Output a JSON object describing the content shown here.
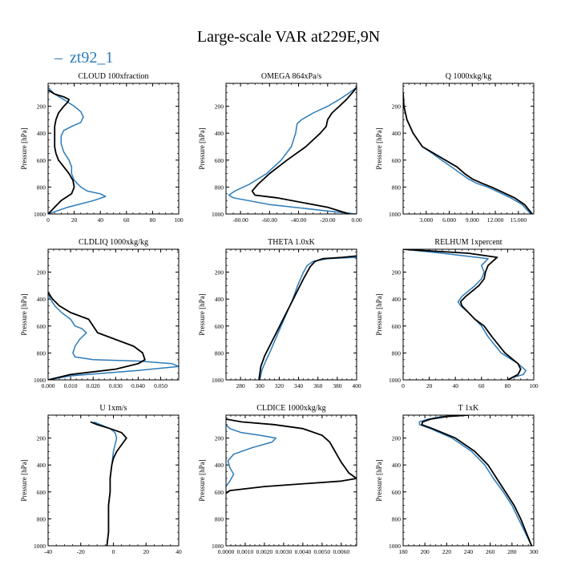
{
  "title": "Large-scale VAR at229E,9N",
  "legend": {
    "label": "zt92_1",
    "color": "#2b7bb9",
    "dash": "–"
  },
  "colors": {
    "model": "#2b7bb9",
    "reference": "#000000"
  },
  "chart_data": [
    {
      "type": "line",
      "title": "CLOUD  100xfraction",
      "ylabel": "Pressure [hPa]",
      "ylim": [
        1000,
        30
      ],
      "yticks": [
        200,
        400,
        600,
        800,
        1000
      ],
      "xlim": [
        0,
        100
      ],
      "xticks": [
        0,
        20,
        40,
        60,
        80,
        100
      ],
      "xticklabels": [
        "0",
        "20",
        "40",
        "60",
        "80",
        "100"
      ],
      "series": [
        {
          "name": "zt92_1",
          "x": [
            0,
            2,
            5,
            12,
            20,
            25,
            27,
            25,
            18,
            12,
            10,
            10,
            12,
            16,
            18,
            18,
            20,
            25,
            30,
            40,
            44,
            35,
            15,
            0
          ],
          "y": [
            60,
            80,
            110,
            150,
            200,
            240,
            280,
            320,
            350,
            380,
            420,
            480,
            540,
            600,
            650,
            700,
            750,
            800,
            830,
            850,
            870,
            900,
            950,
            1000
          ]
        },
        {
          "name": "reference",
          "x": [
            0,
            5,
            12,
            16,
            15,
            12,
            8,
            6,
            5,
            5,
            5,
            5,
            6,
            8,
            12,
            16,
            19,
            20,
            18,
            10,
            0
          ],
          "y": [
            80,
            110,
            130,
            150,
            170,
            200,
            250,
            300,
            350,
            400,
            450,
            500,
            550,
            600,
            650,
            700,
            750,
            800,
            850,
            900,
            1000
          ]
        }
      ]
    },
    {
      "type": "line",
      "title": "OMEGA  864xPa/s",
      "ylabel": "Pressure [hPa]",
      "ylim": [
        1000,
        30
      ],
      "yticks": [
        200,
        400,
        600,
        800,
        1000
      ],
      "xlim": [
        -90,
        0
      ],
      "xticks": [
        -80,
        -60,
        -40,
        -20,
        0
      ],
      "xticklabels": [
        "-80.00",
        "-60.00",
        "-40.00",
        "-20.00",
        "0.00"
      ],
      "series": [
        {
          "name": "zt92_1",
          "x": [
            0,
            -5,
            -12,
            -20,
            -30,
            -38,
            -41,
            -42,
            -45,
            -52,
            -62,
            -74,
            -84,
            -88,
            -85,
            -60,
            -10,
            0
          ],
          "y": [
            60,
            100,
            150,
            200,
            250,
            300,
            330,
            400,
            500,
            600,
            700,
            780,
            830,
            860,
            880,
            930,
            990,
            1000
          ]
        },
        {
          "name": "reference",
          "x": [
            0,
            -3,
            -7,
            -12,
            -17,
            -20,
            -21,
            -25,
            -35,
            -48,
            -60,
            -68,
            -72,
            -70,
            -55,
            -20,
            -5
          ],
          "y": [
            60,
            100,
            150,
            200,
            250,
            300,
            350,
            400,
            500,
            600,
            700,
            780,
            830,
            860,
            880,
            950,
            1000
          ]
        }
      ]
    },
    {
      "type": "line",
      "title": "Q  1000xkg/kg",
      "ylabel": "Pressure [hPa]",
      "ylim": [
        1000,
        30
      ],
      "yticks": [
        200,
        400,
        600,
        800,
        1000
      ],
      "xlim": [
        0,
        17
      ],
      "xticks": [
        3,
        6,
        9,
        12,
        15
      ],
      "xticklabels": [
        "3.000",
        "6.000",
        "9.000",
        "12.000",
        "15.000"
      ],
      "series": [
        {
          "name": "zt92_1",
          "x": [
            0,
            0.1,
            0.5,
            1.3,
            2.5,
            3.8,
            5.0,
            6.3,
            7.5,
            8.5,
            9.5,
            11,
            12.5,
            14,
            15.5,
            16.6
          ],
          "y": [
            100,
            200,
            300,
            400,
            500,
            550,
            600,
            650,
            700,
            740,
            770,
            800,
            840,
            880,
            930,
            1000
          ]
        },
        {
          "name": "reference",
          "x": [
            0,
            0.1,
            0.5,
            1.3,
            2.5,
            4.0,
            5.5,
            7.0,
            8.0,
            9.0,
            10.2,
            11.5,
            13,
            14.5,
            15.8,
            16.8
          ],
          "y": [
            100,
            200,
            300,
            400,
            500,
            550,
            600,
            650,
            700,
            740,
            770,
            800,
            840,
            880,
            930,
            1000
          ]
        }
      ]
    },
    {
      "type": "line",
      "title": "CLDLIQ  1000xkg/kg",
      "ylabel": "Pressure [hPa]",
      "ylim": [
        1000,
        30
      ],
      "yticks": [
        200,
        400,
        600,
        800,
        1000
      ],
      "xlim": [
        0,
        0.058
      ],
      "xticks": [
        0,
        0.01,
        0.02,
        0.03,
        0.04,
        0.05
      ],
      "xticklabels": [
        "0.000",
        "0.010",
        "0.020",
        "0.030",
        "0.040",
        "0.050"
      ],
      "series": [
        {
          "name": "zt92_1",
          "x": [
            0,
            0.001,
            0.003,
            0.006,
            0.01,
            0.012,
            0.015,
            0.017,
            0.014,
            0.012,
            0.011,
            0.012,
            0.02,
            0.04,
            0.055,
            0.058,
            0.04,
            0.01,
            0
          ],
          "y": [
            350,
            400,
            450,
            500,
            550,
            600,
            620,
            650,
            700,
            750,
            800,
            830,
            850,
            860,
            880,
            900,
            930,
            970,
            1000
          ]
        },
        {
          "name": "reference",
          "x": [
            0,
            0.002,
            0.005,
            0.01,
            0.018,
            0.02,
            0.022,
            0.03,
            0.038,
            0.042,
            0.043,
            0.04,
            0.03,
            0.01,
            0
          ],
          "y": [
            350,
            400,
            450,
            500,
            550,
            600,
            650,
            700,
            750,
            800,
            850,
            880,
            920,
            960,
            1000
          ]
        }
      ]
    },
    {
      "type": "line",
      "title": "THETA  1.0xK",
      "ylabel": "Pressure [hPa]",
      "ylim": [
        1000,
        30
      ],
      "yticks": [
        200,
        400,
        600,
        800,
        1000
      ],
      "xlim": [
        265,
        400
      ],
      "xticks": [
        280,
        300,
        320,
        340,
        360,
        380,
        400
      ],
      "xticklabels": [
        "280",
        "300",
        "320",
        "340",
        "360",
        "380",
        "400"
      ],
      "series": [
        {
          "name": "zt92_1",
          "x": [
            400,
            370,
            355,
            349,
            345,
            339,
            334,
            328,
            322,
            316,
            310,
            306,
            302,
            300
          ],
          "y": [
            90,
            100,
            120,
            150,
            200,
            300,
            400,
            500,
            600,
            700,
            800,
            860,
            930,
            1000
          ]
        },
        {
          "name": "reference",
          "x": [
            400,
            385,
            365,
            357,
            352,
            345,
            338,
            331,
            324,
            317,
            310,
            305,
            301,
            299
          ],
          "y": [
            80,
            90,
            100,
            120,
            160,
            250,
            350,
            450,
            550,
            650,
            750,
            820,
            900,
            1000
          ]
        }
      ]
    },
    {
      "type": "line",
      "title": "RELHUM  1xpercent",
      "ylabel": "Pressure [hPa]",
      "ylim": [
        1000,
        30
      ],
      "yticks": [
        200,
        400,
        600,
        800,
        1000
      ],
      "xlim": [
        0,
        100
      ],
      "xticks": [
        0,
        20,
        40,
        60,
        80,
        100
      ],
      "xticklabels": [
        "0",
        "20",
        "40",
        "60",
        "80",
        "100"
      ],
      "series": [
        {
          "name": "zt92_1",
          "x": [
            0,
            30,
            65,
            60,
            62,
            60,
            55,
            45,
            42,
            44,
            50,
            55,
            60,
            65,
            75,
            88,
            94,
            92,
            85,
            82,
            80
          ],
          "y": [
            30,
            60,
            100,
            150,
            200,
            250,
            300,
            380,
            420,
            450,
            500,
            550,
            600,
            680,
            800,
            880,
            930,
            960,
            980,
            990,
            1000
          ]
        },
        {
          "name": "reference",
          "x": [
            0,
            50,
            72,
            65,
            63,
            62,
            58,
            48,
            44,
            45,
            50,
            55,
            62,
            68,
            78,
            88,
            90,
            88,
            82,
            80
          ],
          "y": [
            30,
            60,
            90,
            150,
            200,
            250,
            300,
            380,
            420,
            450,
            500,
            550,
            600,
            680,
            800,
            880,
            920,
            960,
            990,
            1000
          ]
        }
      ]
    },
    {
      "type": "line",
      "title": "U  1xm/s",
      "ylabel": "Pressure [hPa]",
      "ylim": [
        1000,
        30
      ],
      "yticks": [
        200,
        400,
        600,
        800,
        1000
      ],
      "xlim": [
        -40,
        40
      ],
      "xticks": [
        -40,
        -20,
        0,
        20,
        40
      ],
      "xticklabels": [
        "-40",
        "-20",
        "0",
        "20",
        "40"
      ],
      "series": [
        {
          "name": "zt92_1",
          "x": [
            -12,
            -8,
            -2,
            1,
            2,
            1,
            0,
            -1,
            -2,
            -2,
            -3,
            -3,
            -3,
            -4
          ],
          "y": [
            80,
            100,
            130,
            160,
            200,
            250,
            300,
            400,
            500,
            600,
            700,
            800,
            900,
            1000
          ]
        },
        {
          "name": "reference",
          "x": [
            -14,
            -10,
            -2,
            5,
            8,
            5,
            2,
            0,
            -1,
            -2,
            -2,
            -3,
            -3,
            -3,
            -4
          ],
          "y": [
            80,
            100,
            130,
            160,
            200,
            250,
            300,
            350,
            400,
            500,
            600,
            700,
            800,
            900,
            1000
          ]
        }
      ]
    },
    {
      "type": "line",
      "title": "CLDICE  1000xkg/kg",
      "ylabel": "Pressure [hPa]",
      "ylim": [
        1000,
        30
      ],
      "yticks": [
        200,
        400,
        600,
        800,
        1000
      ],
      "xlim": [
        0,
        0.0068
      ],
      "xticks": [
        0,
        0.001,
        0.002,
        0.003,
        0.004,
        0.005,
        0.006
      ],
      "xticklabels": [
        "0.0000",
        "0.0010",
        "0.0020",
        "0.0030",
        "0.0040",
        "0.0050",
        "0.0060"
      ],
      "series": [
        {
          "name": "zt92_1",
          "x": [
            0,
            0.0002,
            0.0008,
            0.0018,
            0.0026,
            0.0024,
            0.0014,
            0.0004,
            0.0001,
            0.0002,
            0.0004,
            0.0002,
            0
          ],
          "y": [
            100,
            130,
            160,
            180,
            200,
            230,
            270,
            320,
            370,
            420,
            470,
            520,
            560
          ]
        },
        {
          "name": "reference",
          "x": [
            0,
            0.0008,
            0.0025,
            0.004,
            0.005,
            0.0054,
            0.0056,
            0.0058,
            0.006,
            0.0062,
            0.0064,
            0.0068,
            0.006,
            0.002,
            0.0002,
            0
          ],
          "y": [
            60,
            80,
            100,
            130,
            180,
            230,
            280,
            330,
            380,
            420,
            460,
            500,
            520,
            560,
            590,
            610
          ]
        }
      ]
    },
    {
      "type": "line",
      "title": "T  1xK",
      "ylabel": "Pressure [hPa]",
      "ylim": [
        1000,
        30
      ],
      "yticks": [
        200,
        400,
        600,
        800,
        1000
      ],
      "xlim": [
        180,
        300
      ],
      "xticks": [
        180,
        200,
        220,
        240,
        260,
        280,
        300
      ],
      "xticklabels": [
        "180",
        "200",
        "220",
        "240",
        "260",
        "280",
        "300"
      ],
      "series": [
        {
          "name": "zt92_1",
          "x": [
            237,
            215,
            203,
            195,
            195,
            205,
            225,
            243,
            255,
            263,
            272,
            280,
            286,
            292,
            298
          ],
          "y": [
            30,
            40,
            60,
            80,
            100,
            130,
            200,
            300,
            400,
            500,
            600,
            700,
            800,
            900,
            1000
          ]
        },
        {
          "name": "reference",
          "x": [
            240,
            220,
            205,
            198,
            197,
            207,
            228,
            246,
            258,
            266,
            274,
            282,
            288,
            293,
            298
          ],
          "y": [
            30,
            40,
            60,
            80,
            100,
            130,
            200,
            300,
            400,
            500,
            600,
            700,
            800,
            900,
            1000
          ]
        }
      ]
    }
  ]
}
